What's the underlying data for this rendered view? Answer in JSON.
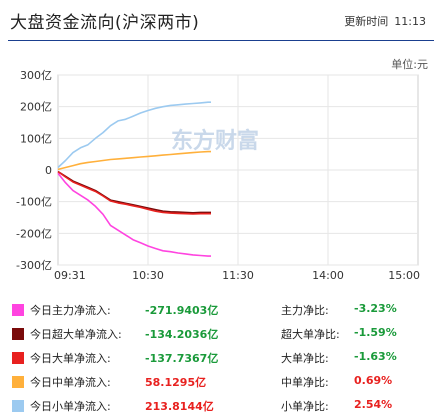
{
  "header": {
    "title": "大盘资金流向(沪深两市)",
    "update_label": "更新时间",
    "update_time": "11:13"
  },
  "unit_label": "单位:元",
  "watermark": "东方财富",
  "colors": {
    "main": "#ff44e0",
    "super": "#7a0a0a",
    "large": "#e8211f",
    "medium": "#ffb03b",
    "small": "#9ccaf0",
    "negative_text": "#1a9a3a",
    "positive_text": "#e8211f"
  },
  "chart_data": {
    "type": "line",
    "x_ticks": [
      "09:31",
      "10:30",
      "11:30",
      "14:00",
      "15:00"
    ],
    "y_ticks": [
      "300亿",
      "200亿",
      "100亿",
      "0",
      "-100亿",
      "-200亿",
      "-300亿"
    ],
    "ylim": [
      -300,
      300
    ],
    "x_note": "trading minutes from 09:31; 11:30/13:00 break joined; 240 = 15:00",
    "series": [
      {
        "key": "main",
        "name": "今日主力净流入",
        "color": "#ff44e0",
        "x": [
          0,
          5,
          10,
          15,
          20,
          25,
          30,
          35,
          40,
          45,
          50,
          55,
          60,
          65,
          70,
          75,
          80,
          85,
          90,
          95,
          100,
          102
        ],
        "y": [
          -10,
          -40,
          -65,
          -80,
          -95,
          -115,
          -140,
          -175,
          -190,
          -205,
          -220,
          -230,
          -240,
          -248,
          -255,
          -258,
          -262,
          -265,
          -268,
          -270,
          -272,
          -272
        ]
      },
      {
        "key": "super",
        "name": "今日超大单净流入",
        "color": "#7a0a0a",
        "x": [
          0,
          5,
          10,
          15,
          20,
          25,
          30,
          35,
          40,
          45,
          50,
          55,
          60,
          65,
          70,
          75,
          80,
          85,
          90,
          95,
          100,
          102
        ],
        "y": [
          -5,
          -20,
          -35,
          -45,
          -55,
          -65,
          -80,
          -95,
          -100,
          -105,
          -110,
          -115,
          -120,
          -125,
          -130,
          -132,
          -133,
          -134,
          -135,
          -134,
          -134,
          -134
        ]
      },
      {
        "key": "large",
        "name": "今日大单净流入",
        "color": "#e8211f",
        "x": [
          0,
          5,
          10,
          15,
          20,
          25,
          30,
          35,
          40,
          45,
          50,
          55,
          60,
          65,
          70,
          75,
          80,
          85,
          90,
          95,
          100,
          102
        ],
        "y": [
          -5,
          -22,
          -38,
          -48,
          -58,
          -68,
          -82,
          -98,
          -104,
          -108,
          -113,
          -118,
          -124,
          -130,
          -134,
          -136,
          -137,
          -138,
          -139,
          -138,
          -138,
          -138
        ]
      },
      {
        "key": "medium",
        "name": "今日中单净流入",
        "color": "#ffb03b",
        "x": [
          0,
          5,
          10,
          15,
          20,
          25,
          30,
          35,
          40,
          45,
          50,
          55,
          60,
          65,
          70,
          75,
          80,
          85,
          90,
          95,
          100,
          102
        ],
        "y": [
          2,
          8,
          14,
          20,
          24,
          27,
          30,
          33,
          35,
          37,
          39,
          41,
          43,
          45,
          47,
          49,
          51,
          53,
          55,
          57,
          58,
          58
        ]
      },
      {
        "key": "small",
        "name": "今日小单净流入",
        "color": "#9ccaf0",
        "x": [
          0,
          5,
          10,
          15,
          20,
          25,
          30,
          35,
          40,
          45,
          50,
          55,
          60,
          65,
          70,
          75,
          80,
          85,
          90,
          95,
          100,
          102
        ],
        "y": [
          8,
          30,
          55,
          70,
          80,
          100,
          118,
          140,
          155,
          160,
          170,
          180,
          188,
          195,
          200,
          204,
          206,
          208,
          210,
          212,
          214,
          214
        ]
      }
    ]
  },
  "legend": [
    {
      "key": "main",
      "label": "今日主力净流入:",
      "value": "-271.9403亿",
      "sign": "neg",
      "ratio_label": "主力净比:",
      "ratio": "-3.23%",
      "ratio_sign": "neg"
    },
    {
      "key": "super",
      "label": "今日超大单净流入:",
      "value": "-134.2036亿",
      "sign": "neg",
      "ratio_label": "超大单净比:",
      "ratio": "-1.59%",
      "ratio_sign": "neg"
    },
    {
      "key": "large",
      "label": "今日大单净流入:",
      "value": "-137.7367亿",
      "sign": "neg",
      "ratio_label": "大单净比:",
      "ratio": "-1.63%",
      "ratio_sign": "neg"
    },
    {
      "key": "medium",
      "label": "今日中单净流入:",
      "value": "58.1295亿",
      "sign": "pos",
      "ratio_label": "中单净比:",
      "ratio": "0.69%",
      "ratio_sign": "pos"
    },
    {
      "key": "small",
      "label": "今日小单净流入:",
      "value": "213.8144亿",
      "sign": "pos",
      "ratio_label": "小单净比:",
      "ratio": "2.54%",
      "ratio_sign": "pos"
    }
  ]
}
